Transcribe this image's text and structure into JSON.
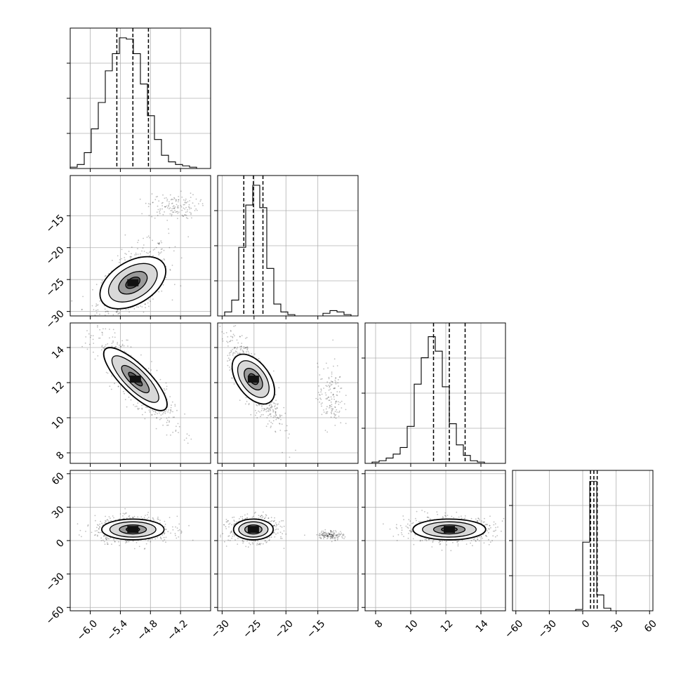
{
  "chart_data": {
    "type": "corner",
    "n_params": 4,
    "grid": true,
    "params": [
      {
        "range": [
          -6.4,
          -3.6
        ],
        "median": -5.15,
        "q16": -5.47,
        "q84": -4.84,
        "x_ticks": [
          "−6.0",
          "−5.4",
          "−4.8",
          "−4.2"
        ],
        "x_tick_values": [
          -6.0,
          -5.4,
          -4.8,
          -4.2
        ],
        "y_ticks": [
          "",
          "",
          ""
        ],
        "hist": [
          0.01,
          0.03,
          0.12,
          0.3,
          0.5,
          0.74,
          0.87,
          0.99,
          0.98,
          0.87,
          0.64,
          0.4,
          0.22,
          0.1,
          0.05,
          0.03,
          0.02,
          0.01,
          0.0,
          0.0
        ]
      },
      {
        "range": [
          -30.7,
          -8.7
        ],
        "median": -25.1,
        "q16": -26.6,
        "q84": -23.6,
        "x_ticks": [
          "−30",
          "−25",
          "−20",
          "−15"
        ],
        "x_tick_values": [
          -30,
          -25,
          -20,
          -15
        ],
        "y_ticks": [
          "−15",
          "−20",
          "−25",
          "−30"
        ],
        "y_tick_values": [
          -15,
          -20,
          -25,
          -30
        ],
        "hist": [
          0.0,
          0.03,
          0.12,
          0.52,
          0.84,
          0.99,
          0.82,
          0.36,
          0.09,
          0.03,
          0.01,
          0.0,
          0.0,
          0.0,
          0.0,
          0.02,
          0.04,
          0.03,
          0.01,
          0.0
        ]
      },
      {
        "range": [
          7.4,
          15.4
        ],
        "median": 12.2,
        "q16": 11.3,
        "q84": 13.1,
        "x_ticks": [
          "8",
          "10",
          "12",
          "14"
        ],
        "x_tick_values": [
          8,
          10,
          12,
          14
        ],
        "y_ticks": [
          "14",
          "12",
          "10",
          "8"
        ],
        "y_tick_values": [
          14,
          12,
          10,
          8
        ],
        "hist": [
          0.0,
          0.01,
          0.02,
          0.04,
          0.07,
          0.12,
          0.28,
          0.6,
          0.8,
          0.96,
          0.85,
          0.58,
          0.3,
          0.14,
          0.06,
          0.02,
          0.01,
          0.0,
          0.0,
          0.0
        ]
      },
      {
        "range": [
          -63,
          63
        ],
        "median": 10,
        "q16": 7,
        "q84": 13,
        "x_ticks": [
          "−60",
          "−30",
          "0",
          "30",
          "60"
        ],
        "x_tick_values": [
          -60,
          -30,
          0,
          30,
          60
        ],
        "y_ticks": [
          "60",
          "30",
          "0",
          "−30",
          "−60"
        ],
        "y_tick_values": [
          60,
          30,
          0,
          -30,
          -60
        ],
        "hist": [
          0,
          0,
          0,
          0,
          0,
          0,
          0,
          0,
          0,
          0.01,
          0.52,
          0.98,
          0.12,
          0.02,
          0.0,
          0,
          0,
          0,
          0,
          0
        ]
      }
    ],
    "pairs": [
      {
        "i": 1,
        "j": 0,
        "center": [
          -5.15,
          -25.5
        ],
        "spread": [
          0.28,
          2.4
        ],
        "corr": 0.55
      },
      {
        "i": 2,
        "j": 0,
        "center": [
          -5.1,
          12.2
        ],
        "spread": [
          0.3,
          1.0
        ],
        "corr": -0.85
      },
      {
        "i": 2,
        "j": 1,
        "center": [
          -25.1,
          12.2
        ],
        "spread": [
          1.6,
          1.0
        ],
        "corr": -0.8
      },
      {
        "i": 3,
        "j": 0,
        "center": [
          -5.15,
          10
        ],
        "spread": [
          0.3,
          4.5
        ],
        "corr": 0.0
      },
      {
        "i": 3,
        "j": 1,
        "center": [
          -25.1,
          10
        ],
        "spread": [
          1.5,
          4.5
        ],
        "corr": 0.0
      },
      {
        "i": 3,
        "j": 2,
        "center": [
          12.2,
          10
        ],
        "spread": [
          1.0,
          4.5
        ],
        "corr": 0.0
      }
    ]
  }
}
